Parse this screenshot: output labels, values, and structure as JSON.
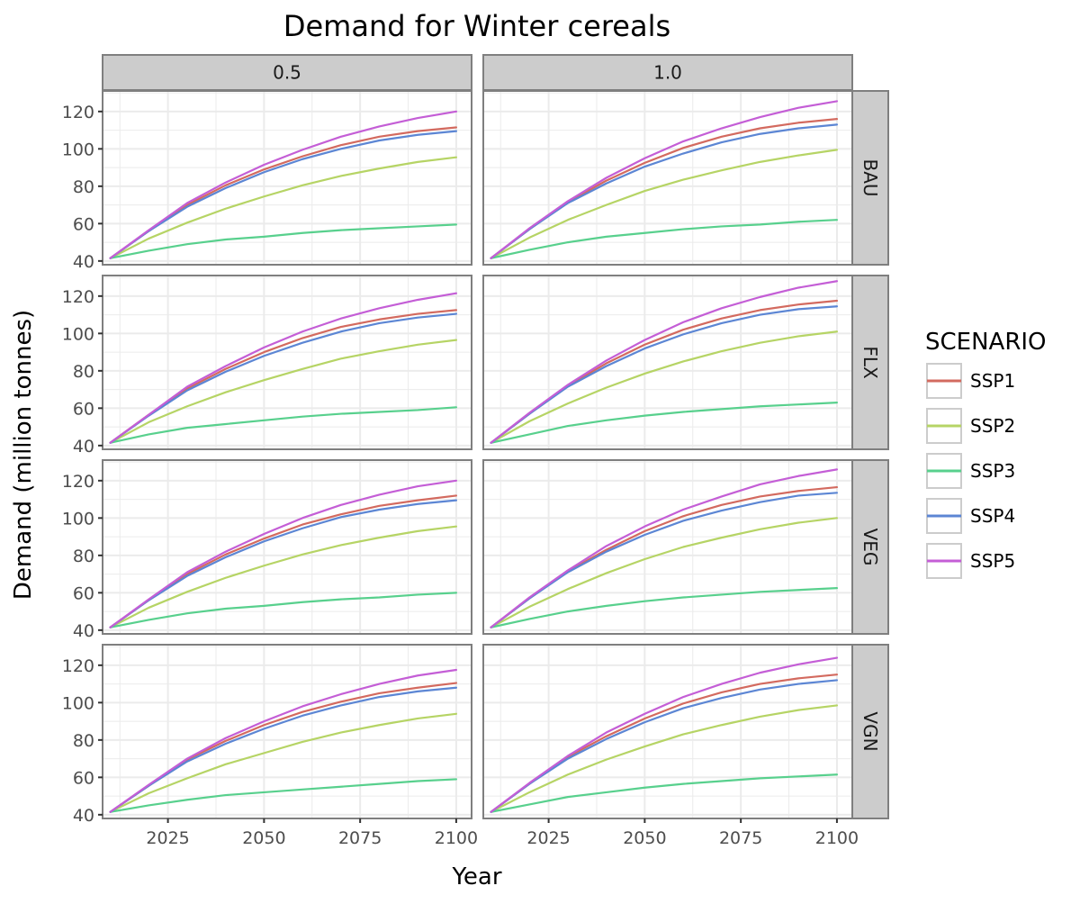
{
  "chart_data": {
    "type": "line",
    "title": "Demand for Winter cereals",
    "xlabel": "Year",
    "ylabel": "Demand (million tonnes)",
    "legend_title": "SCENARIO",
    "legend_position": "right",
    "grid": true,
    "facet_cols": [
      "0.5",
      "1.0"
    ],
    "facet_rows": [
      "BAU",
      "FLX",
      "VEG",
      "VGN"
    ],
    "xlim": [
      2008,
      2104
    ],
    "ylim": [
      38,
      131
    ],
    "x_ticks": [
      2025,
      2050,
      2075,
      2100
    ],
    "y_ticks": [
      40,
      60,
      80,
      100,
      120
    ],
    "x": [
      2010,
      2020,
      2030,
      2040,
      2050,
      2060,
      2070,
      2080,
      2090,
      2100
    ],
    "series_style": [
      {
        "name": "SSP1",
        "color": "#d36a5f"
      },
      {
        "name": "SSP2",
        "color": "#b6d465"
      },
      {
        "name": "SSP3",
        "color": "#58d08d"
      },
      {
        "name": "SSP4",
        "color": "#5c86d4"
      },
      {
        "name": "SSP5",
        "color": "#c45ed6"
      }
    ],
    "panels": [
      {
        "row": "BAU",
        "col": "0.5",
        "series": [
          {
            "name": "SSP1",
            "values": [
              41.5,
              56,
              70,
              80.5,
              89,
              96,
              102,
              106.5,
              109.5,
              111.5
            ]
          },
          {
            "name": "SSP2",
            "values": [
              41.5,
              52,
              60.5,
              68,
              74.5,
              80.5,
              85.5,
              89.5,
              93,
              95.5
            ]
          },
          {
            "name": "SSP3",
            "values": [
              41.5,
              45.5,
              49,
              51.5,
              53,
              55,
              56.5,
              57.5,
              58.5,
              59.5
            ]
          },
          {
            "name": "SSP4",
            "values": [
              41.5,
              56,
              69,
              79,
              87.5,
              94.5,
              100,
              104.5,
              107.5,
              109.5
            ]
          },
          {
            "name": "SSP5",
            "values": [
              41.5,
              56.5,
              71,
              82,
              91.5,
              99.5,
              106.5,
              112,
              116.5,
              120
            ]
          }
        ]
      },
      {
        "row": "BAU",
        "col": "1.0",
        "series": [
          {
            "name": "SSP1",
            "values": [
              41.5,
              57,
              71.5,
              83,
              92.5,
              100.5,
              106.5,
              111,
              114,
              116
            ]
          },
          {
            "name": "SSP2",
            "values": [
              41.5,
              52.5,
              62,
              70,
              77.5,
              83.5,
              88.5,
              93,
              96.5,
              99.5
            ]
          },
          {
            "name": "SSP3",
            "values": [
              41.5,
              46,
              50,
              53,
              55,
              57,
              58.5,
              59.5,
              61,
              62
            ]
          },
          {
            "name": "SSP4",
            "values": [
              41.5,
              57,
              71,
              81.5,
              90.5,
              97.5,
              103.5,
              108,
              111,
              113
            ]
          },
          {
            "name": "SSP5",
            "values": [
              41.5,
              57.5,
              72,
              84.5,
              95,
              104,
              111,
              117,
              122,
              125.5
            ]
          }
        ]
      },
      {
        "row": "FLX",
        "col": "0.5",
        "series": [
          {
            "name": "SSP1",
            "values": [
              41.5,
              56.5,
              70.5,
              81,
              90,
              97.5,
              103.5,
              107.5,
              110.5,
              112.5
            ]
          },
          {
            "name": "SSP2",
            "values": [
              41.5,
              52.5,
              61,
              68.5,
              75,
              81,
              86.5,
              90.5,
              94,
              96.5
            ]
          },
          {
            "name": "SSP3",
            "values": [
              41.5,
              46,
              49.5,
              51.5,
              53.5,
              55.5,
              57,
              58,
              59,
              60.5
            ]
          },
          {
            "name": "SSP4",
            "values": [
              41.5,
              56,
              69.5,
              79.5,
              88,
              95,
              101,
              105.5,
              108.5,
              110.5
            ]
          },
          {
            "name": "SSP5",
            "values": [
              41.5,
              56.5,
              71.5,
              82.5,
              92.5,
              101,
              108,
              113.5,
              118,
              121.5
            ]
          }
        ]
      },
      {
        "row": "FLX",
        "col": "1.0",
        "series": [
          {
            "name": "SSP1",
            "values": [
              41.5,
              57,
              72,
              84,
              94,
              102,
              108,
              112.5,
              115.5,
              117.5
            ]
          },
          {
            "name": "SSP2",
            "values": [
              41.5,
              53,
              62.5,
              71,
              78.5,
              85,
              90.5,
              95,
              98.5,
              101
            ]
          },
          {
            "name": "SSP3",
            "values": [
              41.5,
              46,
              50.5,
              53.5,
              56,
              58,
              59.5,
              61,
              62,
              63
            ]
          },
          {
            "name": "SSP4",
            "values": [
              41.5,
              57,
              71.5,
              82.5,
              92,
              99.5,
              105.5,
              110,
              113,
              114.5
            ]
          },
          {
            "name": "SSP5",
            "values": [
              41.5,
              57.5,
              72.5,
              85.5,
              96.5,
              106,
              113.5,
              119.5,
              124.5,
              128
            ]
          }
        ]
      },
      {
        "row": "VEG",
        "col": "0.5",
        "series": [
          {
            "name": "SSP1",
            "values": [
              41.5,
              56,
              70,
              80.5,
              89,
              96.5,
              102,
              106.5,
              109.5,
              112
            ]
          },
          {
            "name": "SSP2",
            "values": [
              41.5,
              52,
              60.5,
              68,
              74.5,
              80.5,
              85.5,
              89.5,
              93,
              95.5
            ]
          },
          {
            "name": "SSP3",
            "values": [
              41.5,
              45.5,
              49,
              51.5,
              53,
              55,
              56.5,
              57.5,
              59,
              60
            ]
          },
          {
            "name": "SSP4",
            "values": [
              41.5,
              56,
              69,
              79,
              87.5,
              94.5,
              100.5,
              104.5,
              107.5,
              109.5
            ]
          },
          {
            "name": "SSP5",
            "values": [
              41.5,
              56.5,
              71,
              82,
              91.5,
              100,
              107,
              112.5,
              117,
              120
            ]
          }
        ]
      },
      {
        "row": "VEG",
        "col": "1.0",
        "series": [
          {
            "name": "SSP1",
            "values": [
              41.5,
              57,
              71.5,
              83,
              93,
              101,
              107,
              111.5,
              114.5,
              116.5
            ]
          },
          {
            "name": "SSP2",
            "values": [
              41.5,
              52.5,
              62,
              70.5,
              78,
              84.5,
              89.5,
              94,
              97.5,
              100
            ]
          },
          {
            "name": "SSP3",
            "values": [
              41.5,
              46,
              50,
              53,
              55.5,
              57.5,
              59,
              60.5,
              61.5,
              62.5
            ]
          },
          {
            "name": "SSP4",
            "values": [
              41.5,
              57,
              71,
              82,
              91,
              98.5,
              104,
              108.5,
              112,
              113.5
            ]
          },
          {
            "name": "SSP5",
            "values": [
              41.5,
              57.5,
              72,
              85,
              95.5,
              104.5,
              111.5,
              118,
              122.5,
              126
            ]
          }
        ]
      },
      {
        "row": "VGN",
        "col": "0.5",
        "series": [
          {
            "name": "SSP1",
            "values": [
              41.5,
              55.5,
              69.5,
              79.5,
              88,
              95,
              100.5,
              105,
              108,
              110.5
            ]
          },
          {
            "name": "SSP2",
            "values": [
              41.5,
              51.5,
              59.5,
              67,
              73,
              79,
              84,
              88,
              91.5,
              94
            ]
          },
          {
            "name": "SSP3",
            "values": [
              41.5,
              45,
              48,
              50.5,
              52,
              53.5,
              55,
              56.5,
              58,
              59
            ]
          },
          {
            "name": "SSP4",
            "values": [
              41.5,
              55.5,
              68.5,
              78,
              86,
              93,
              98.5,
              103,
              106,
              108
            ]
          },
          {
            "name": "SSP5",
            "values": [
              41.5,
              56,
              70,
              81,
              90,
              98,
              104.5,
              110,
              114.5,
              117.5
            ]
          }
        ]
      },
      {
        "row": "VGN",
        "col": "1.0",
        "series": [
          {
            "name": "SSP1",
            "values": [
              41.5,
              56.5,
              71,
              82,
              91.5,
              99.5,
              105.5,
              110,
              113,
              115
            ]
          },
          {
            "name": "SSP2",
            "values": [
              41.5,
              52,
              61.5,
              69.5,
              76.5,
              83,
              88,
              92.5,
              96,
              98.5
            ]
          },
          {
            "name": "SSP3",
            "values": [
              41.5,
              45.5,
              49.5,
              52,
              54.5,
              56.5,
              58,
              59.5,
              60.5,
              61.5
            ]
          },
          {
            "name": "SSP4",
            "values": [
              41.5,
              56.5,
              70,
              80.5,
              89.5,
              97,
              102.5,
              107,
              110,
              112
            ]
          },
          {
            "name": "SSP5",
            "values": [
              41.5,
              57,
              71.5,
              84,
              94,
              103,
              110,
              116,
              120.5,
              124
            ]
          }
        ]
      }
    ]
  }
}
